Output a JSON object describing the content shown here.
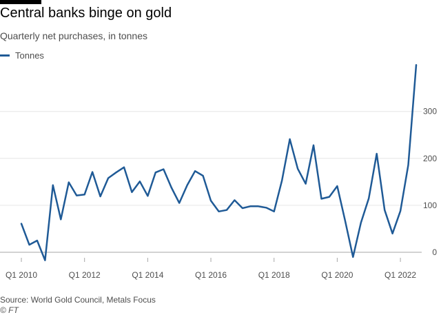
{
  "header": {
    "title": "Central banks binge on gold",
    "subtitle": "Quarterly net purchases, in tonnes"
  },
  "footer": {
    "source": "Source: World Gold Council, Metals Focus",
    "credit": "© FT"
  },
  "colors": {
    "series": "#1f5a96",
    "grid": "#e6e6e6",
    "zero": "#a6a6a6",
    "tick_text": "#4d4d4d"
  },
  "chart_data": {
    "type": "line",
    "title": "Central banks binge on gold",
    "subtitle": "Quarterly net purchases, in tonnes",
    "xlabel": "",
    "ylabel": "",
    "ylim": [
      -20,
      400
    ],
    "yticks": [
      0,
      100,
      200,
      300
    ],
    "legend": "top-left",
    "grid": true,
    "x_tick_labels": [
      {
        "index": 0,
        "label": "Q1 2010"
      },
      {
        "index": 8,
        "label": "Q1 2012"
      },
      {
        "index": 16,
        "label": "Q1 2014"
      },
      {
        "index": 24,
        "label": "Q1 2016"
      },
      {
        "index": 32,
        "label": "Q1 2018"
      },
      {
        "index": 40,
        "label": "Q1 2020"
      },
      {
        "index": 48,
        "label": "Q1 2022"
      }
    ],
    "x": [
      "Q1 2010",
      "Q2 2010",
      "Q3 2010",
      "Q4 2010",
      "Q1 2011",
      "Q2 2011",
      "Q3 2011",
      "Q4 2011",
      "Q1 2012",
      "Q2 2012",
      "Q3 2012",
      "Q4 2012",
      "Q1 2013",
      "Q2 2013",
      "Q3 2013",
      "Q4 2013",
      "Q1 2014",
      "Q2 2014",
      "Q3 2014",
      "Q4 2014",
      "Q1 2015",
      "Q2 2015",
      "Q3 2015",
      "Q4 2015",
      "Q1 2016",
      "Q2 2016",
      "Q3 2016",
      "Q4 2016",
      "Q1 2017",
      "Q2 2017",
      "Q3 2017",
      "Q4 2017",
      "Q1 2018",
      "Q2 2018",
      "Q3 2018",
      "Q4 2018",
      "Q1 2019",
      "Q2 2019",
      "Q3 2019",
      "Q4 2019",
      "Q1 2020",
      "Q2 2020",
      "Q3 2020",
      "Q4 2020",
      "Q1 2021",
      "Q2 2021",
      "Q3 2021",
      "Q4 2021",
      "Q1 2022",
      "Q2 2022",
      "Q3 2022"
    ],
    "series": [
      {
        "name": "Tonnes",
        "values": [
          61,
          16,
          25,
          -17,
          143,
          70,
          149,
          121,
          123,
          171,
          119,
          158,
          170,
          181,
          128,
          151,
          120,
          170,
          177,
          138,
          105,
          143,
          173,
          163,
          110,
          87,
          90,
          111,
          94,
          98,
          98,
          95,
          87,
          153,
          241,
          178,
          146,
          228,
          114,
          118,
          141,
          67,
          -10,
          63,
          115,
          210,
          90,
          40,
          88,
          186,
          399
        ]
      }
    ]
  }
}
